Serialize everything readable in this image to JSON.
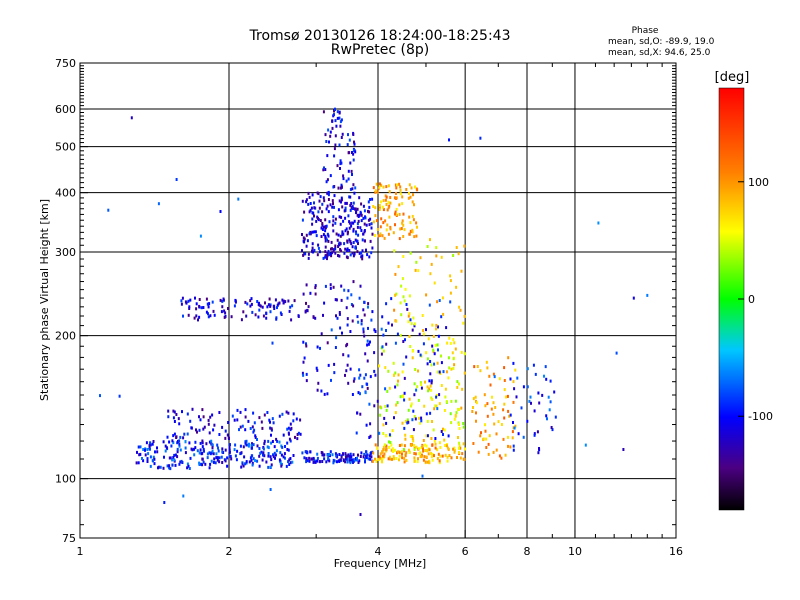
{
  "chart_data": {
    "type": "scatter",
    "title": "Tromsø 20130126 18:24:00-18:25:43",
    "subtitle": "RwPretec (8p)",
    "xlabel": "Frequency [MHz]",
    "ylabel": "Stationary phase Virtual Height [km]",
    "x_scale": "log",
    "y_scale": "log",
    "xlim": [
      1,
      16
    ],
    "ylim": [
      75,
      750
    ],
    "x_ticks": [
      1,
      2,
      4,
      6,
      8,
      10,
      16
    ],
    "x_tick_labels": [
      "1",
      "2",
      "4",
      "6",
      "8",
      "10",
      "16"
    ],
    "y_ticks": [
      75,
      100,
      200,
      300,
      400,
      500,
      600,
      750
    ],
    "y_tick_labels": [
      "75",
      "100",
      "200",
      "300",
      "400",
      "500",
      "600",
      "750"
    ],
    "x_minor_ticks": [
      3,
      5,
      7,
      9,
      11,
      12,
      13,
      14,
      15
    ],
    "grid": true,
    "stats": {
      "heading": "Phase",
      "line_o": "mean, sd,O: -89.9, 19.0",
      "line_x": "mean, sd,X:  94.6, 25.0"
    },
    "colorbar": {
      "label": "[deg]",
      "range": [
        -180,
        180
      ],
      "ticks": [
        100,
        0,
        -100
      ],
      "tick_labels": [
        "100",
        "0",
        "-100"
      ]
    },
    "clusters": [
      {
        "x": [
          1.3,
          2.7
        ],
        "y": [
          105,
          120
        ],
        "phase": -95,
        "count": 260
      },
      {
        "x": [
          1.5,
          2.8
        ],
        "y": [
          120,
          140
        ],
        "phase": -110,
        "count": 110
      },
      {
        "x": [
          2.8,
          3.9
        ],
        "y": [
          108,
          114
        ],
        "phase": -100,
        "count": 120
      },
      {
        "x": [
          3.9,
          6.0
        ],
        "y": [
          108,
          118
        ],
        "phase": 90,
        "count": 140
      },
      {
        "x": [
          4.0,
          6.0
        ],
        "y": [
          115,
          200
        ],
        "phase": 60,
        "count": 160
      },
      {
        "x": [
          3.6,
          5.6
        ],
        "y": [
          120,
          240
        ],
        "phase": -100,
        "count": 120
      },
      {
        "x": [
          1.6,
          2.9
        ],
        "y": [
          215,
          240
        ],
        "phase": -115,
        "count": 110
      },
      {
        "x": [
          2.8,
          3.9
        ],
        "y": [
          290,
          400
        ],
        "phase": -115,
        "count": 280
      },
      {
        "x": [
          3.1,
          3.6
        ],
        "y": [
          400,
          600
        ],
        "phase": -110,
        "count": 80
      },
      {
        "x": [
          3.9,
          4.8
        ],
        "y": [
          320,
          420
        ],
        "phase": 95,
        "count": 110
      },
      {
        "x": [
          4.3,
          6.0
        ],
        "y": [
          200,
          320
        ],
        "phase": 70,
        "count": 60
      },
      {
        "x": [
          2.8,
          3.9
        ],
        "y": [
          150,
          260
        ],
        "phase": -110,
        "count": 90
      },
      {
        "x": [
          6.2,
          7.6
        ],
        "y": [
          110,
          180
        ],
        "phase": 100,
        "count": 70
      },
      {
        "x": [
          7.4,
          9.2
        ],
        "y": [
          110,
          175
        ],
        "phase": -95,
        "count": 45
      },
      {
        "x": [
          1.0,
          16.0
        ],
        "y": [
          80,
          700
        ],
        "phase": -90,
        "count": 25
      }
    ]
  }
}
